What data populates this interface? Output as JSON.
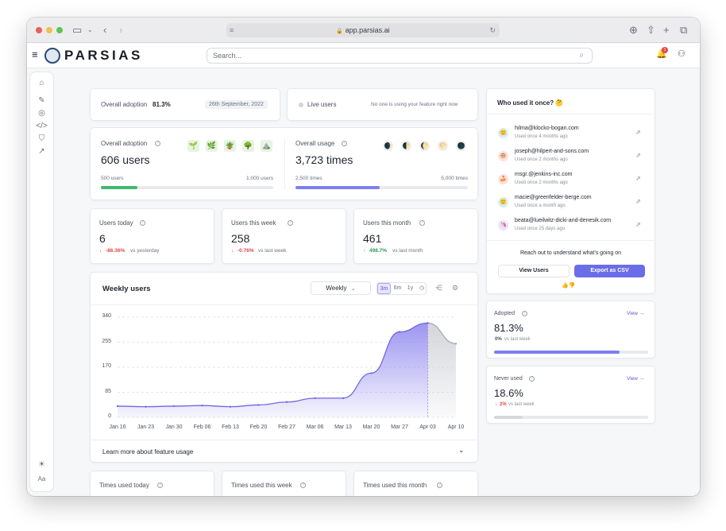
{
  "browser": {
    "url": "app.parsias.ai"
  },
  "app": {
    "logo": "PARSIAS",
    "search_placeholder": "Search...",
    "notification_count": "1"
  },
  "overview": {
    "adoption_label": "Overall adoption",
    "adoption_value": "81.3%",
    "date": "26th September, 2022",
    "live_label": "Live users",
    "live_status": "No one is using your feature right now"
  },
  "adoption_card": {
    "title": "Overall adoption",
    "value": "606 users",
    "min_label": "500 users",
    "max_label": "1,000 users",
    "progress": 0.21,
    "color": "#3dba6f",
    "badges": [
      "🌱",
      "🌿",
      "🪴",
      "🌳",
      "⛰️"
    ]
  },
  "usage_card": {
    "title": "Overall usage",
    "value": "3,723 times",
    "min_label": "2,500 times",
    "max_label": "5,000 times",
    "progress": 0.49,
    "color": "#7c7ff0",
    "moons": [
      "🌒",
      "🌓",
      "🌔",
      "🌕",
      "🌑"
    ]
  },
  "stats": [
    {
      "title": "Users today",
      "value": "6",
      "delta": "-86.36%",
      "trend": "down",
      "compare": "vs yesterday"
    },
    {
      "title": "Users this week",
      "value": "258",
      "delta": "-0.76%",
      "trend": "down",
      "compare": "vs last week"
    },
    {
      "title": "Users this month",
      "value": "461",
      "delta": "498.7%",
      "trend": "up",
      "compare": "vs last month"
    }
  ],
  "weekly": {
    "title": "Weekly users",
    "interval": "Weekly",
    "ranges": [
      "3m",
      "6m",
      "1y"
    ],
    "active_range": "3m",
    "learn_more": "Learn more about feature usage"
  },
  "chart_data": {
    "type": "area",
    "x": [
      "Jan 16",
      "Jan 23",
      "Jan 30",
      "Feb 06",
      "Feb 13",
      "Feb 20",
      "Feb 27",
      "Mar 06",
      "Mar 13",
      "Mar 20",
      "Mar 27",
      "Apr 03",
      "Apr 10"
    ],
    "values": [
      38,
      36,
      38,
      40,
      36,
      42,
      52,
      65,
      65,
      150,
      290,
      320,
      250
    ],
    "projected_from_index": 11,
    "yticks": [
      0,
      85,
      170,
      255,
      340
    ],
    "ylim": [
      0,
      340
    ],
    "title": "",
    "xlabel": "",
    "ylabel": "",
    "grid": true,
    "color": "#8b83ee"
  },
  "bottom_stats": [
    "Times used today",
    "Times used this week",
    "Times used this month"
  ],
  "who_used": {
    "title": "Who used it once? 🤔",
    "users": [
      {
        "email": "hilma@klocko-bogan.com",
        "when": "Used once 4 months ago",
        "emoji": "🙂",
        "bg": "#d9ecfa"
      },
      {
        "email": "joseph@hilpert-and-sons.com",
        "when": "Used once 2 months ago",
        "emoji": "🐵",
        "bg": "#fbe1dc"
      },
      {
        "email": "msgr.@jenkins-inc.com",
        "when": "Used once 2 months ago",
        "emoji": "🍰",
        "bg": "#fde2e2"
      },
      {
        "email": "macie@greenfelder-berge.com",
        "when": "Used once a month ago",
        "emoji": "🙂",
        "bg": "#d9ecfa"
      },
      {
        "email": "beata@lueilwitz-dicki-and-denesik.com",
        "when": "Used once 25 days ago",
        "emoji": "🦄",
        "bg": "#efe3fb"
      }
    ],
    "cta": "Reach out to understand what's going on",
    "view_users": "View Users",
    "export": "Export as CSV",
    "feedback": "👍👎"
  },
  "adopted": {
    "title": "Adopted",
    "view": "View →",
    "value": "81.3%",
    "delta": "0%",
    "compare": "vs last week",
    "progress": 0.813,
    "color": "#7c7ff0"
  },
  "never_used": {
    "title": "Never used",
    "view": "View →",
    "value": "18.6%",
    "delta": "2%",
    "compare": "vs last week",
    "progress": 0.186,
    "color": "#d6d8de"
  }
}
